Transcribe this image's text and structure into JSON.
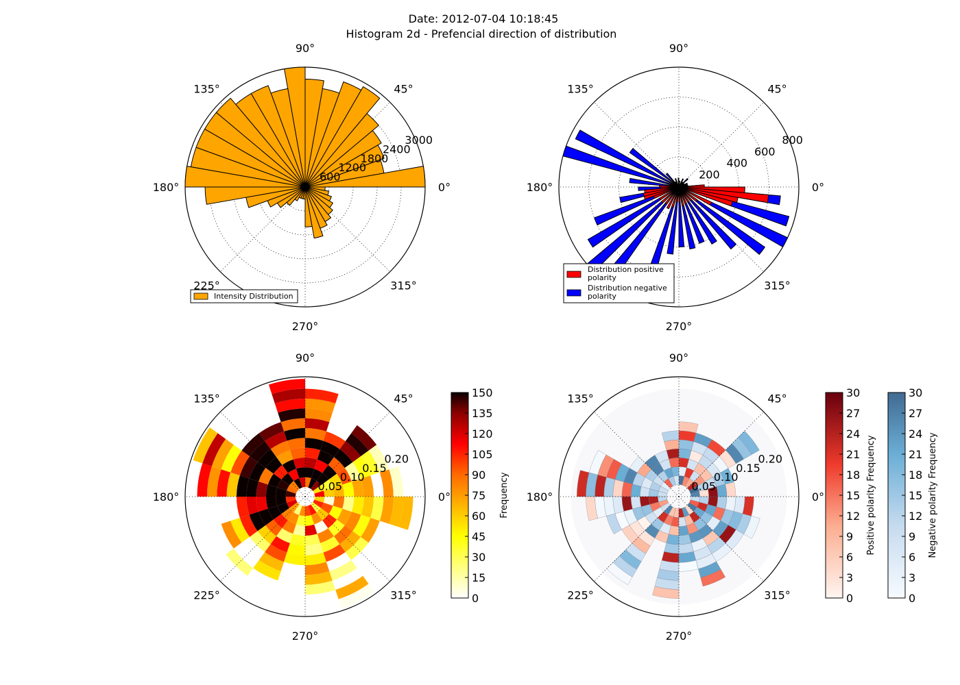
{
  "figure": {
    "title_line1": "Date: 2012-07-04 10:18:45",
    "title_line2": "Histogram 2d - Prefencial direction of distribution"
  },
  "chart_data": [
    {
      "type": "bar",
      "projection": "polar",
      "title": "",
      "angle_labels": [
        "0°",
        "45°",
        "90°",
        "135°",
        "180°",
        "225°",
        "270°",
        "315°"
      ],
      "radial_labels": [
        "600",
        "1200",
        "1800",
        "2400",
        "3000"
      ],
      "rlim": [
        0,
        3000
      ],
      "grid": true,
      "legend_position": "lower-left",
      "series": [
        {
          "name": "Intensity Distribution",
          "color": "#ffa500",
          "bin_width_deg": 10,
          "angles_deg": [
            0,
            10,
            20,
            30,
            40,
            50,
            60,
            70,
            80,
            90,
            100,
            110,
            120,
            130,
            140,
            150,
            160,
            170,
            180,
            190,
            200,
            210,
            220,
            230,
            240,
            250,
            260,
            270,
            280,
            290,
            300,
            310,
            320,
            330,
            340,
            350
          ],
          "values": [
            3000,
            2000,
            2100,
            2200,
            2400,
            2900,
            2800,
            2500,
            2700,
            3000,
            2500,
            2700,
            2700,
            2900,
            2900,
            2900,
            2900,
            3000,
            2500,
            1500,
            1000,
            800,
            600,
            400,
            300,
            300,
            300,
            1000,
            1300,
            1100,
            1000,
            900,
            800,
            700,
            600,
            500
          ]
        }
      ]
    },
    {
      "type": "bar",
      "projection": "polar",
      "title": "",
      "angle_labels": [
        "0°",
        "45°",
        "90°",
        "135°",
        "180°",
        "225°",
        "270°",
        "315°"
      ],
      "radial_labels": [
        "200",
        "400",
        "600",
        "800"
      ],
      "rlim": [
        0,
        800
      ],
      "grid": true,
      "legend_position": "lower-left",
      "series": [
        {
          "name": "Distribution positive\n polarity",
          "color": "#ff0000",
          "bin_width_deg": 5,
          "angles_deg": [
            0,
            5,
            10,
            15,
            20,
            25,
            30,
            40,
            50,
            60,
            90,
            120,
            150,
            160,
            170,
            175,
            180,
            185,
            190,
            195,
            200,
            210,
            220,
            230,
            240,
            250,
            260,
            270,
            280,
            290,
            300,
            310,
            320,
            330,
            340,
            345,
            350,
            355
          ],
          "values": [
            170,
            60,
            50,
            40,
            40,
            40,
            40,
            40,
            40,
            40,
            40,
            40,
            40,
            60,
            80,
            130,
            120,
            230,
            240,
            240,
            180,
            150,
            150,
            140,
            160,
            140,
            100,
            100,
            130,
            120,
            120,
            120,
            150,
            240,
            370,
            400,
            600,
            440
          ]
        },
        {
          "name": "Distribution negative\n polarity",
          "color": "#0000ff",
          "bin_width_deg": 5,
          "angles_deg": [
            0,
            10,
            20,
            40,
            60,
            80,
            90,
            110,
            130,
            140,
            150,
            160,
            170,
            180,
            190,
            200,
            210,
            220,
            230,
            250,
            260,
            270,
            280,
            290,
            300,
            310,
            320,
            330,
            340,
            350
          ],
          "values": [
            150,
            60,
            60,
            80,
            60,
            40,
            60,
            60,
            120,
            400,
            760,
            800,
            330,
            270,
            400,
            600,
            700,
            800,
            740,
            540,
            450,
            400,
            420,
            400,
            440,
            540,
            700,
            800,
            760,
            680
          ]
        }
      ]
    },
    {
      "type": "heatmap",
      "projection": "polar",
      "title": "",
      "angle_labels": [
        "0°",
        "45°",
        "90°",
        "135°",
        "180°",
        "225°",
        "270°",
        "315°"
      ],
      "radial_labels": [
        "0.05",
        "0.10",
        "0.15",
        "0.20"
      ],
      "rlim": [
        0,
        0.25
      ],
      "colormap": "hot_r",
      "colorbar": {
        "label": "Frequency",
        "ticks": [
          "0",
          "15",
          "30",
          "45",
          "60",
          "75",
          "90",
          "105",
          "120",
          "135",
          "150"
        ],
        "range": [
          0,
          150
        ]
      }
    },
    {
      "type": "heatmap",
      "projection": "polar",
      "title": "",
      "angle_labels": [
        "0°",
        "45°",
        "90°",
        "135°",
        "180°",
        "225°",
        "270°",
        "315°"
      ],
      "radial_labels": [
        "0.05",
        "0.10",
        "0.15",
        "0.20"
      ],
      "rlim": [
        0,
        0.25
      ],
      "colorbars": [
        {
          "label": "Positive polarity Frequency",
          "colormap": "Reds",
          "ticks": [
            "0",
            "3",
            "6",
            "9",
            "12",
            "15",
            "18",
            "21",
            "24",
            "27",
            "30"
          ],
          "range": [
            0,
            30
          ]
        },
        {
          "label": "Negative polarity Frequency",
          "colormap": "Blues",
          "ticks": [
            "0",
            "3",
            "6",
            "9",
            "12",
            "15",
            "18",
            "21",
            "24",
            "27",
            "30"
          ],
          "range": [
            0,
            30
          ]
        }
      ]
    }
  ]
}
